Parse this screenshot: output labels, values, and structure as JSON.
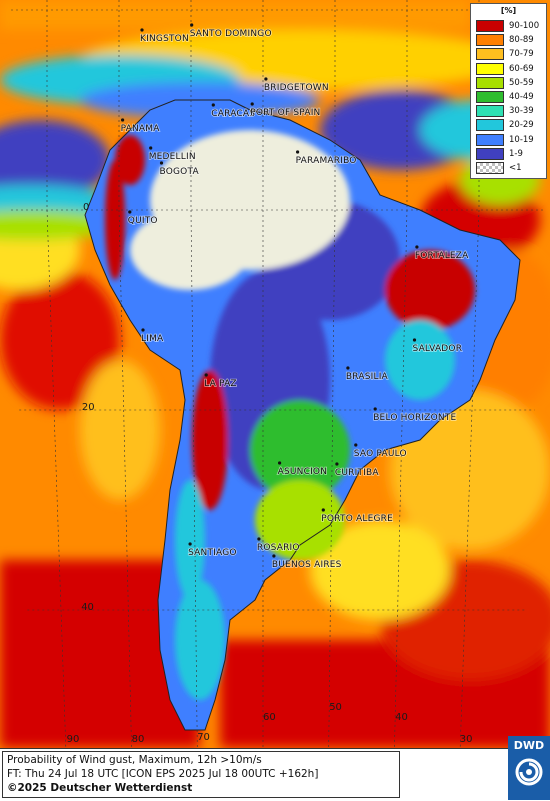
{
  "map": {
    "cities": [
      {
        "name": "KINGSTON",
        "lon": -76.8,
        "lat": 18.0
      },
      {
        "name": "SANTO DOMINGO",
        "lon": -69.9,
        "lat": 18.5
      },
      {
        "name": "BRIDGETOWN",
        "lon": -59.6,
        "lat": 13.1
      },
      {
        "name": "CARACAS",
        "lon": -66.9,
        "lat": 10.5
      },
      {
        "name": "PORT OF SPAIN",
        "lon": -61.5,
        "lat": 10.6
      },
      {
        "name": "PANAMA",
        "lon": -79.5,
        "lat": 9.0
      },
      {
        "name": "MEDELLIN",
        "lon": -75.6,
        "lat": 6.2
      },
      {
        "name": "PARAMARIBO",
        "lon": -55.2,
        "lat": 5.8
      },
      {
        "name": "BOGOTA",
        "lon": -74.1,
        "lat": 4.7
      },
      {
        "name": "QUITO",
        "lon": -78.5,
        "lat": -0.2
      },
      {
        "name": "FORTALEZA",
        "lon": -38.5,
        "lat": -3.7
      },
      {
        "name": "LIMA",
        "lon": -77.0,
        "lat": -12.0
      },
      {
        "name": "SALVADOR",
        "lon": -38.5,
        "lat": -13.0
      },
      {
        "name": "LA PAZ",
        "lon": -68.1,
        "lat": -16.5
      },
      {
        "name": "BRASILIA",
        "lon": -47.9,
        "lat": -15.8
      },
      {
        "name": "BELO HORIZONTE",
        "lon": -43.9,
        "lat": -19.9
      },
      {
        "name": "SAO PAULO",
        "lon": -46.6,
        "lat": -23.5
      },
      {
        "name": "ASUNCION",
        "lon": -57.6,
        "lat": -25.3
      },
      {
        "name": "CURITIBA",
        "lon": -49.3,
        "lat": -25.4
      },
      {
        "name": "PORTO ALEGRE",
        "lon": -51.2,
        "lat": -30.0
      },
      {
        "name": "ROSARIO",
        "lon": -60.6,
        "lat": -32.9
      },
      {
        "name": "SANTIAGO",
        "lon": -70.7,
        "lat": -33.4
      },
      {
        "name": "BUENOS AIRES",
        "lon": -58.4,
        "lat": -34.6
      }
    ],
    "grid_labels": [
      {
        "text": "0",
        "lon": -85,
        "lat": 0
      },
      {
        "text": "20",
        "lon": -86,
        "lat": -20
      },
      {
        "text": "40",
        "lon": -87,
        "lat": -40
      },
      {
        "text": "90",
        "lon": -90,
        "lat": -56
      },
      {
        "text": "80",
        "lon": -80,
        "lat": -54
      },
      {
        "text": "70",
        "lon": -70,
        "lat": -53
      },
      {
        "text": "60",
        "lon": -60,
        "lat": -51
      },
      {
        "text": "50",
        "lon": -50,
        "lat": -50
      },
      {
        "text": "40",
        "lon": -40,
        "lat": -51
      },
      {
        "text": "30",
        "lon": -30,
        "lat": -55
      }
    ]
  },
  "legend": {
    "title": "[%]",
    "entries": [
      {
        "label": "90-100",
        "color": "#c80000"
      },
      {
        "label": "80-89",
        "color": "#ff7f00"
      },
      {
        "label": "70-79",
        "color": "#ffbf1f"
      },
      {
        "label": "60-69",
        "color": "#ffff00"
      },
      {
        "label": "50-59",
        "color": "#a8e000"
      },
      {
        "label": "40-49",
        "color": "#2ebd2e"
      },
      {
        "label": "30-39",
        "color": "#2ee0b3"
      },
      {
        "label": "20-29",
        "color": "#22c7dc"
      },
      {
        "label": "10-19",
        "color": "#3f7fff"
      },
      {
        "label": "1-9",
        "color": "#4040c0"
      },
      {
        "label": "<1",
        "color": "#c8c8c8"
      }
    ]
  },
  "footer": {
    "line1": "Probability of Wind gust, Maximum, 12h >10m/s",
    "line2": "FT: Thu 24 Jul 18 UTC [ICON EPS 2025 Jul 18 00UTC +162h]",
    "line3": "©2025 Deutscher Wetterdienst"
  },
  "logo": {
    "text": "DWD"
  }
}
